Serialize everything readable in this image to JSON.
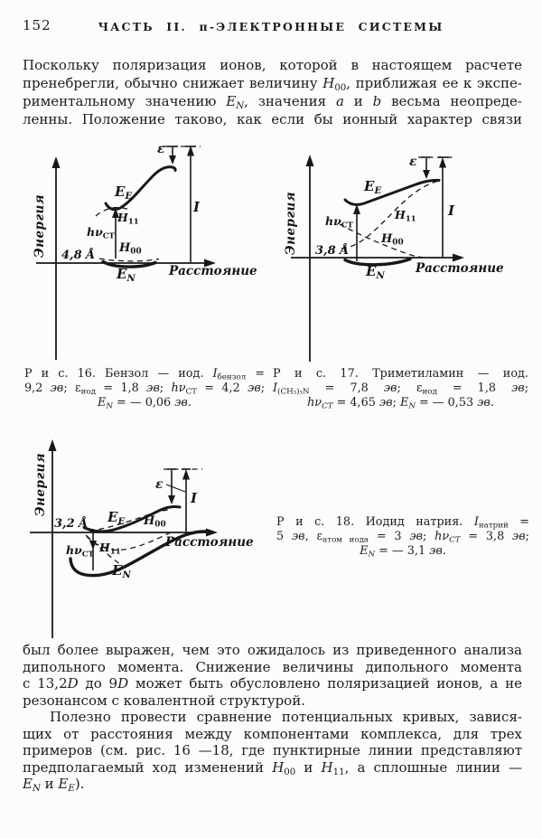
{
  "page": {
    "number": "152",
    "title": "ЧАСТЬ II. π-ЭЛЕКТРОННЫЕ СИСТЕМЫ"
  },
  "body": {
    "p1": {
      "lines": [
        {
          "a": "j",
          "s": [
            {
              "t": "Поскольку поляризация ионов, которой в настоящем расчете"
            }
          ]
        },
        {
          "a": "j",
          "s": [
            {
              "t": "пренебрегли, обычно снижает величину "
            },
            {
              "t": "H",
              "s": "i"
            },
            {
              "t": "00",
              "s": "sub"
            },
            {
              "t": ", приближая ее к экспе-"
            }
          ]
        },
        {
          "a": "j",
          "s": [
            {
              "t": "риментальному значению "
            },
            {
              "t": "E",
              "s": "i"
            },
            {
              "t": "N",
              "s": "subi"
            },
            {
              "t": ", значения "
            },
            {
              "t": "a",
              "s": "i"
            },
            {
              "t": " и "
            },
            {
              "t": "b",
              "s": "i"
            },
            {
              "t": " весьма неопреде-"
            }
          ]
        },
        {
          "a": "j",
          "s": [
            {
              "t": "ленны. Положение таково, как если бы ионный характер связи"
            }
          ]
        }
      ]
    },
    "p2": {
      "lines": [
        {
          "a": "j",
          "s": [
            {
              "t": "был более выражен, чем это ожидалось из приведенного анализа"
            }
          ]
        },
        {
          "a": "j",
          "s": [
            {
              "t": "дипольного момента. Снижение величины дипольного момента"
            }
          ]
        },
        {
          "a": "j",
          "s": [
            {
              "t": "с 13,2"
            },
            {
              "t": "D",
              "s": "i"
            },
            {
              "t": " до 9"
            },
            {
              "t": "D",
              "s": "i"
            },
            {
              "t": " может быть обусловлено поляризацией ионов, а не"
            }
          ]
        },
        {
          "a": "l",
          "s": [
            {
              "t": "резонансом с ковалентной структурой."
            }
          ]
        }
      ]
    },
    "p3": {
      "lines": [
        {
          "a": "j",
          "ind": true,
          "s": [
            {
              "t": "Полезно провести сравнение потенциальных кривых, завися-"
            }
          ]
        },
        {
          "a": "j",
          "s": [
            {
              "t": "щих от расстояния между компонентами комплекса, для трех"
            }
          ]
        },
        {
          "a": "j",
          "s": [
            {
              "t": "примеров (см. рис. 16 —18, где пунктирные линии представляют"
            }
          ]
        },
        {
          "a": "j",
          "s": [
            {
              "t": "предполагаемый ход изменений "
            },
            {
              "t": "H",
              "s": "i"
            },
            {
              "t": "00",
              "s": "sub"
            },
            {
              "t": " и "
            },
            {
              "t": "H",
              "s": "i"
            },
            {
              "t": "11",
              "s": "sub"
            },
            {
              "t": ", а сплошные линии —"
            }
          ]
        },
        {
          "a": "l",
          "s": [
            {
              "t": "E",
              "s": "i"
            },
            {
              "t": "N",
              "s": "subi"
            },
            {
              "t": " и "
            },
            {
              "t": "E",
              "s": "i"
            },
            {
              "t": "E",
              "s": "subi"
            },
            {
              "t": ")."
            }
          ]
        }
      ]
    }
  },
  "fig_labels": {
    "energy": "Энергия",
    "distance": "Расстояние",
    "epsilon": "ε",
    "ionization": "I",
    "EE": [
      {
        "t": "E",
        "s": "i"
      },
      {
        "t": "E",
        "s": "subi"
      }
    ],
    "EN": [
      {
        "t": "E",
        "s": "i"
      },
      {
        "t": "N",
        "s": "subi"
      }
    ],
    "H00": [
      {
        "t": "H",
        "s": "i"
      },
      {
        "t": "00",
        "s": "sub"
      }
    ],
    "H11": [
      {
        "t": "H",
        "s": "i"
      },
      {
        "t": "11",
        "s": "sub"
      }
    ],
    "hvct": [
      {
        "t": "hν",
        "s": "i"
      },
      {
        "t": "CT",
        "s": "sub"
      }
    ]
  },
  "fig16": {
    "distance_value": "4,8 Å",
    "caption": {
      "lines": [
        {
          "a": "j",
          "s": [
            {
              "t": "Р и с. 16. Бензол — иод. "
            },
            {
              "t": "I",
              "s": "i"
            },
            {
              "t": "бензол",
              "s": "sub"
            },
            {
              "t": " ="
            }
          ]
        },
        {
          "a": "j",
          "s": [
            {
              "t": "9,2 "
            },
            {
              "t": "эв",
              "s": "i"
            },
            {
              "t": "; ε"
            },
            {
              "t": "иод",
              "s": "sub"
            },
            {
              "t": " = 1,8 "
            },
            {
              "t": "эв",
              "s": "i"
            },
            {
              "t": "; "
            },
            {
              "t": "hν",
              "s": "i"
            },
            {
              "t": "CT",
              "s": "sub"
            },
            {
              "t": " = 4,2 "
            },
            {
              "t": "эв",
              "s": "i"
            },
            {
              "t": ";"
            }
          ]
        },
        {
          "a": "c",
          "s": [
            {
              "t": "E",
              "s": "i"
            },
            {
              "t": "N",
              "s": "subi"
            },
            {
              "t": " = — 0,06 "
            },
            {
              "t": "эв",
              "s": "i"
            },
            {
              "t": "."
            }
          ]
        }
      ]
    }
  },
  "fig17": {
    "distance_value": "3,8 Å",
    "caption": {
      "lines": [
        {
          "a": "j",
          "s": [
            {
              "t": "Р и с.   17.   Триметиламин — иод."
            }
          ]
        },
        {
          "a": "j",
          "s": [
            {
              "t": "I",
              "s": "i"
            },
            {
              "t": "(CH₃)₃N",
              "s": "sub"
            },
            {
              "t": " = 7,8 "
            },
            {
              "t": "эв",
              "s": "i"
            },
            {
              "t": "; ε"
            },
            {
              "t": "иод",
              "s": "sub"
            },
            {
              "t": " = 1,8 "
            },
            {
              "t": "эв",
              "s": "i"
            },
            {
              "t": ";"
            }
          ]
        },
        {
          "a": "c",
          "s": [
            {
              "t": "hν",
              "s": "i"
            },
            {
              "t": "CT",
              "s": "subi"
            },
            {
              "t": " = 4,65 "
            },
            {
              "t": "эв",
              "s": "i"
            },
            {
              "t": "; "
            },
            {
              "t": "E",
              "s": "i"
            },
            {
              "t": "N",
              "s": "subi"
            },
            {
              "t": " = — 0,53 "
            },
            {
              "t": "эв",
              "s": "i"
            },
            {
              "t": "."
            }
          ]
        }
      ]
    }
  },
  "fig18": {
    "distance_value": "3,2 Å",
    "caption": {
      "lines": [
        {
          "a": "j",
          "s": [
            {
              "t": "Р и с. 18. Иодид натрия. "
            },
            {
              "t": "I",
              "s": "i"
            },
            {
              "t": "натрий",
              "s": "sub"
            },
            {
              "t": " ="
            }
          ]
        },
        {
          "a": "j",
          "s": [
            {
              "t": "5 "
            },
            {
              "t": "эв",
              "s": "i"
            },
            {
              "t": ", ε"
            },
            {
              "t": "атом иода",
              "s": "sub"
            },
            {
              "t": " = 3 "
            },
            {
              "t": "эв",
              "s": "i"
            },
            {
              "t": "; "
            },
            {
              "t": "hν",
              "s": "i"
            },
            {
              "t": "CT",
              "s": "subi"
            },
            {
              "t": " = 3,8 "
            },
            {
              "t": "эв",
              "s": "i"
            },
            {
              "t": ";"
            }
          ]
        },
        {
          "a": "c",
          "s": [
            {
              "t": "E",
              "s": "i"
            },
            {
              "t": "N",
              "s": "subi"
            },
            {
              "t": " = — 3,1 "
            },
            {
              "t": "эв",
              "s": "i"
            },
            {
              "t": "."
            }
          ]
        }
      ]
    }
  }
}
